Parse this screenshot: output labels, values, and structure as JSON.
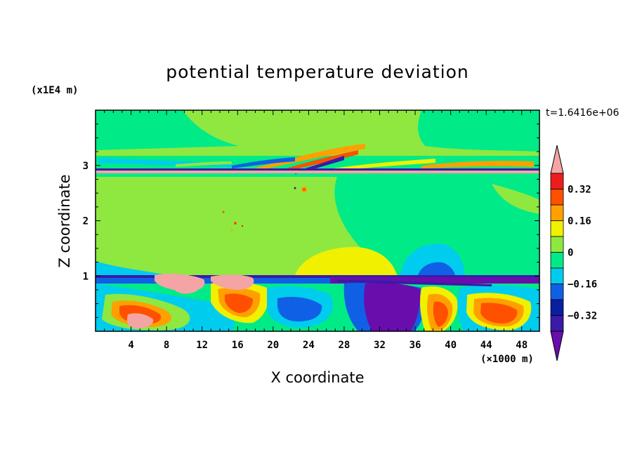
{
  "chart_data": {
    "type": "heatmap",
    "title": "potential temperature deviation",
    "xlabel": "X coordinate",
    "ylabel": "Z coordinate",
    "x_unit": "(×1000 m)",
    "y_unit": "(x1E4 m)",
    "time_label": "t=1.6416e+06",
    "xlim": [
      0,
      50
    ],
    "ylim": [
      0,
      4
    ],
    "x_ticks": [
      4,
      8,
      12,
      16,
      20,
      24,
      28,
      32,
      36,
      40,
      44,
      48
    ],
    "y_ticks": [
      1,
      2,
      3
    ],
    "colorbar": {
      "levels": [
        -0.4,
        -0.32,
        -0.24,
        -0.16,
        -0.08,
        0,
        0.08,
        0.16,
        0.24,
        0.32,
        0.4
      ],
      "colors": [
        "#6a0dad",
        "#3a1aa8",
        "#0a1ea0",
        "#1060e6",
        "#00ccee",
        "#00ea88",
        "#8ee840",
        "#f0f000",
        "#ffa000",
        "#ff5000",
        "#ee1c1c",
        "#f4a4a4"
      ],
      "labels": [
        "0.32",
        "0.16",
        "0",
        "−0.16",
        "−0.32"
      ],
      "label_values": [
        0.32,
        0.16,
        0,
        -0.16,
        -0.32
      ]
    }
  }
}
